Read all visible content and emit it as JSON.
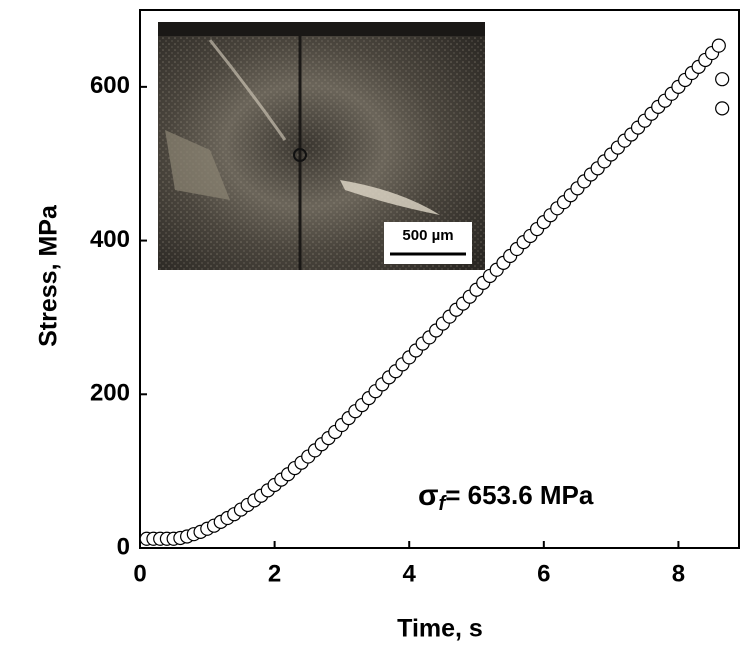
{
  "chart_data": {
    "type": "scatter",
    "x_label": "Time, s",
    "y_label": "Stress, MPa",
    "xlim": [
      0,
      8.9
    ],
    "ylim": [
      0,
      700
    ],
    "xticks": [
      0,
      2,
      4,
      6,
      8
    ],
    "yticks": [
      0,
      200,
      400,
      600
    ],
    "marker_color": "#000000",
    "x": [
      0.1,
      0.2,
      0.3,
      0.4,
      0.5,
      0.6,
      0.7,
      0.8,
      0.9,
      1.0,
      1.1,
      1.2,
      1.3,
      1.4,
      1.5,
      1.6,
      1.7,
      1.8,
      1.9,
      2.0,
      2.1,
      2.2,
      2.3,
      2.4,
      2.5,
      2.6,
      2.7,
      2.8,
      2.9,
      3.0,
      3.1,
      3.2,
      3.3,
      3.4,
      3.5,
      3.6,
      3.7,
      3.8,
      3.9,
      4.0,
      4.1,
      4.2,
      4.3,
      4.4,
      4.5,
      4.6,
      4.7,
      4.8,
      4.9,
      5.0,
      5.1,
      5.2,
      5.3,
      5.4,
      5.5,
      5.6,
      5.7,
      5.8,
      5.9,
      6.0,
      6.1,
      6.2,
      6.3,
      6.4,
      6.5,
      6.6,
      6.7,
      6.8,
      6.9,
      7.0,
      7.1,
      7.2,
      7.3,
      7.4,
      7.5,
      7.6,
      7.7,
      7.8,
      7.9,
      8.0,
      8.1,
      8.2,
      8.3,
      8.4,
      8.5,
      8.6,
      8.65,
      8.65
    ],
    "values": [
      12,
      12,
      12,
      12,
      12,
      13,
      15,
      18,
      21,
      25,
      29,
      34,
      39,
      44,
      50,
      56,
      62,
      68,
      75,
      82,
      89,
      96,
      104,
      111,
      119,
      127,
      135,
      143,
      151,
      160,
      169,
      178,
      186,
      195,
      204,
      213,
      222,
      230,
      239,
      248,
      257,
      266,
      274,
      283,
      292,
      301,
      310,
      318,
      327,
      336,
      345,
      354,
      362,
      371,
      380,
      389,
      398,
      406,
      415,
      424,
      433,
      442,
      450,
      459,
      468,
      477,
      486,
      494,
      503,
      512,
      521,
      530,
      538,
      547,
      556,
      565,
      574,
      582,
      591,
      600,
      609,
      618,
      626,
      635,
      644,
      653.6,
      610,
      572
    ],
    "annotation": {
      "symbol": "σ",
      "subscript": "f",
      "text": "= 653.6 MPa"
    },
    "inset_scale_bar": "500 µm"
  }
}
